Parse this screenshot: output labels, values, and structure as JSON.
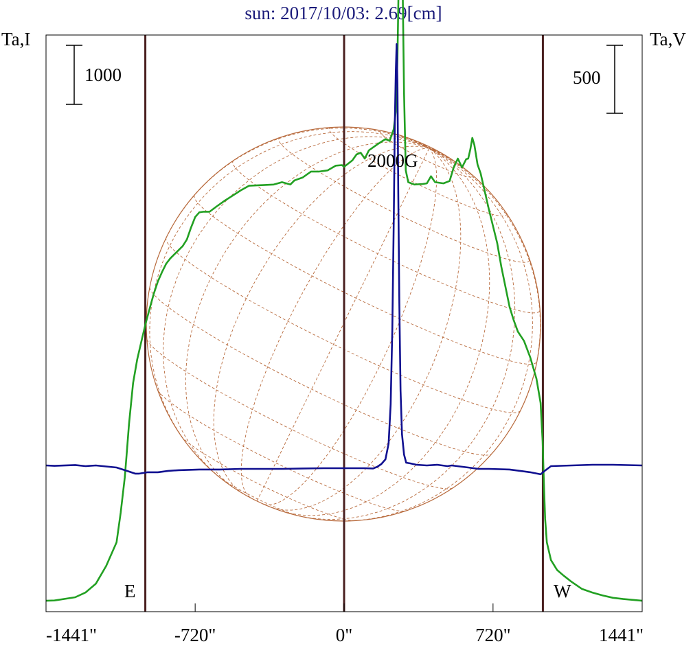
{
  "chart_data": {
    "type": "line",
    "title": "sun: 2017/10/03: 2.69[cm]",
    "ylabel_left": "Ta,I",
    "ylabel_right": "Ta,V",
    "xlim": [
      -1441,
      1441
    ],
    "x_ticks": [
      {
        "value": -1441,
        "label": "-1441\""
      },
      {
        "value": -720,
        "label": "-720\""
      },
      {
        "value": 0,
        "label": "0\""
      },
      {
        "value": 720,
        "label": "720\""
      },
      {
        "value": 1441,
        "label": "1441\""
      }
    ],
    "scale_bars": {
      "left": "1000",
      "right": "500"
    },
    "limb_lines": [
      -961,
      0,
      961
    ],
    "limb_labels": {
      "east": "E",
      "west": "W"
    },
    "annotation": "2000G",
    "colors": {
      "title": "#1a1a7a",
      "intensity": "#22a022",
      "stokes_v": "#101090",
      "limb": "#4a2020",
      "disk": "#b86a3c",
      "frame": "#000000"
    },
    "series": [
      {
        "key": "intensity",
        "units_per_bar": 1000,
        "points": [
          [
            -1441,
            10
          ],
          [
            -1400,
            15
          ],
          [
            -1300,
            70
          ],
          [
            -1250,
            150
          ],
          [
            -1200,
            300
          ],
          [
            -1150,
            600
          ],
          [
            -1100,
            1000
          ],
          [
            -1080,
            1500
          ],
          [
            -1060,
            2100
          ],
          [
            -1050,
            2550
          ],
          [
            -1040,
            3000
          ],
          [
            -1020,
            3700
          ],
          [
            -1000,
            4100
          ],
          [
            -980,
            4400
          ],
          [
            -960,
            4700
          ],
          [
            -940,
            4960
          ],
          [
            -920,
            5210
          ],
          [
            -900,
            5420
          ],
          [
            -880,
            5580
          ],
          [
            -860,
            5720
          ],
          [
            -840,
            5810
          ],
          [
            -820,
            5880
          ],
          [
            -800,
            5950
          ],
          [
            -780,
            6020
          ],
          [
            -760,
            6130
          ],
          [
            -740,
            6330
          ],
          [
            -720,
            6510
          ],
          [
            -700,
            6590
          ],
          [
            -680,
            6600
          ],
          [
            -650,
            6600
          ],
          [
            -620,
            6680
          ],
          [
            -580,
            6780
          ],
          [
            -540,
            6870
          ],
          [
            -500,
            6960
          ],
          [
            -460,
            7040
          ],
          [
            -400,
            7050
          ],
          [
            -340,
            7060
          ],
          [
            -300,
            7100
          ],
          [
            -260,
            7060
          ],
          [
            -240,
            7130
          ],
          [
            -200,
            7180
          ],
          [
            -160,
            7280
          ],
          [
            -120,
            7280
          ],
          [
            -80,
            7300
          ],
          [
            -40,
            7380
          ],
          [
            -10,
            7390
          ],
          [
            0,
            7360
          ],
          [
            40,
            7470
          ],
          [
            60,
            7570
          ],
          [
            80,
            7600
          ],
          [
            100,
            7500
          ],
          [
            120,
            7640
          ],
          [
            160,
            7740
          ],
          [
            200,
            7830
          ],
          [
            220,
            7800
          ],
          [
            240,
            8000
          ],
          [
            250,
            8300
          ],
          [
            258,
            9200
          ],
          [
            265,
            10750
          ],
          [
            272,
            11400
          ],
          [
            278,
            11300
          ],
          [
            284,
            10200
          ],
          [
            290,
            8600
          ],
          [
            298,
            7300
          ],
          [
            310,
            7100
          ],
          [
            340,
            7060
          ],
          [
            380,
            7070
          ],
          [
            400,
            7080
          ],
          [
            420,
            7200
          ],
          [
            440,
            7100
          ],
          [
            480,
            7080
          ],
          [
            510,
            7120
          ],
          [
            530,
            7350
          ],
          [
            550,
            7500
          ],
          [
            570,
            7350
          ],
          [
            590,
            7490
          ],
          [
            600,
            7500
          ],
          [
            610,
            7650
          ],
          [
            620,
            7850
          ],
          [
            630,
            7730
          ],
          [
            645,
            7400
          ],
          [
            660,
            7250
          ],
          [
            700,
            6640
          ],
          [
            740,
            6070
          ],
          [
            760,
            5670
          ],
          [
            800,
            4990
          ],
          [
            820,
            4760
          ],
          [
            840,
            4570
          ],
          [
            870,
            4410
          ],
          [
            900,
            4130
          ],
          [
            930,
            3770
          ],
          [
            950,
            3360
          ],
          [
            960,
            2700
          ],
          [
            966,
            2000
          ],
          [
            972,
            1400
          ],
          [
            980,
            1000
          ],
          [
            1000,
            700
          ],
          [
            1030,
            530
          ],
          [
            1060,
            440
          ],
          [
            1100,
            330
          ],
          [
            1150,
            210
          ],
          [
            1200,
            150
          ],
          [
            1250,
            100
          ],
          [
            1300,
            60
          ],
          [
            1350,
            40
          ],
          [
            1400,
            25
          ],
          [
            1441,
            10
          ]
        ]
      },
      {
        "key": "stokes_v",
        "units_per_bar": 500,
        "points": [
          [
            -1441,
            0
          ],
          [
            -1400,
            -3
          ],
          [
            -1300,
            3
          ],
          [
            -1250,
            -5
          ],
          [
            -1200,
            0
          ],
          [
            -1100,
            -15
          ],
          [
            -1050,
            -40
          ],
          [
            -1010,
            -60
          ],
          [
            -990,
            -60
          ],
          [
            -950,
            -50
          ],
          [
            -900,
            -50
          ],
          [
            -850,
            -40
          ],
          [
            -800,
            -35
          ],
          [
            -700,
            -30
          ],
          [
            -600,
            -30
          ],
          [
            -500,
            -25
          ],
          [
            -400,
            -25
          ],
          [
            -300,
            -25
          ],
          [
            -200,
            -22
          ],
          [
            -100,
            -20
          ],
          [
            0,
            -20
          ],
          [
            100,
            -20
          ],
          [
            140,
            -22
          ],
          [
            160,
            -10
          ],
          [
            180,
            10
          ],
          [
            200,
            45
          ],
          [
            215,
            160
          ],
          [
            225,
            450
          ],
          [
            233,
            1000
          ],
          [
            240,
            1800
          ],
          [
            245,
            2500
          ],
          [
            250,
            2900
          ],
          [
            254,
            3100
          ],
          [
            258,
            2800
          ],
          [
            262,
            2000
          ],
          [
            267,
            1200
          ],
          [
            273,
            550
          ],
          [
            280,
            230
          ],
          [
            290,
            80
          ],
          [
            300,
            20
          ],
          [
            320,
            15
          ],
          [
            350,
            5
          ],
          [
            400,
            0
          ],
          [
            450,
            5
          ],
          [
            500,
            -5
          ],
          [
            520,
            0
          ],
          [
            600,
            -15
          ],
          [
            650,
            -25
          ],
          [
            700,
            -25
          ],
          [
            800,
            -30
          ],
          [
            900,
            -50
          ],
          [
            950,
            -65
          ],
          [
            970,
            -40
          ],
          [
            1000,
            -5
          ],
          [
            1100,
            0
          ],
          [
            1200,
            5
          ],
          [
            1300,
            5
          ],
          [
            1441,
            0
          ]
        ]
      }
    ]
  }
}
